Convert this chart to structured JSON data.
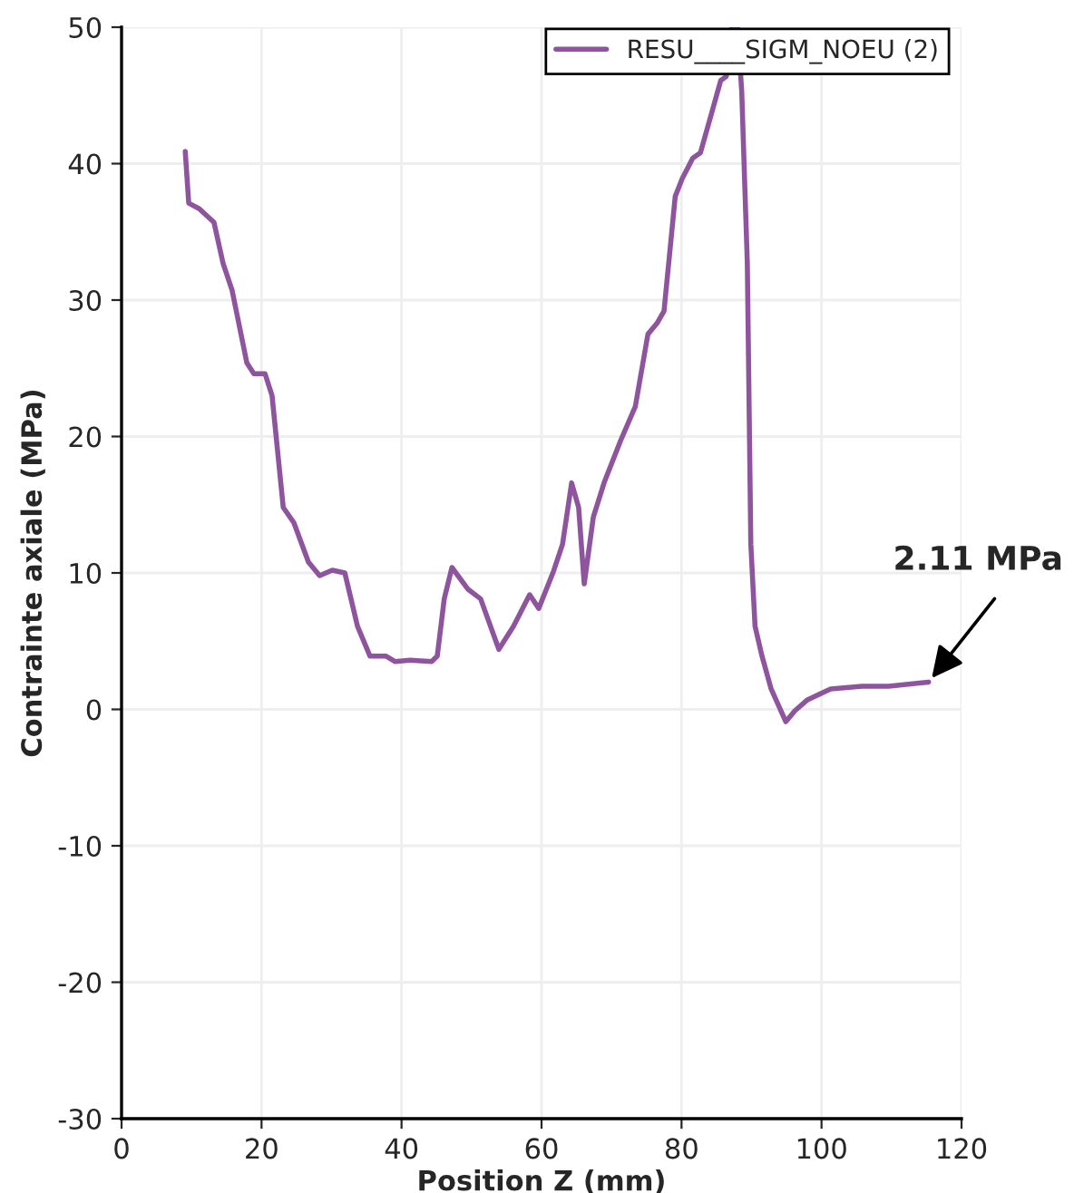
{
  "chart_data": {
    "type": "line",
    "xlabel": "Position Z (mm)",
    "ylabel": "Contrainte axiale (MPa)",
    "x": [
      9.1,
      9.6,
      11.1,
      13.2,
      14.5,
      15.8,
      17.9,
      18.9,
      20.5,
      21.5,
      23.1,
      24.6,
      26.7,
      28.3,
      30.1,
      31.9,
      33.7,
      35.5,
      37.8,
      39.1,
      41.2,
      44.3,
      45.1,
      46.1,
      47.2,
      49.5,
      51.3,
      53.9,
      56,
      58.3,
      59.6,
      61.7,
      63,
      64.3,
      65.3,
      66.1,
      67.4,
      69,
      71.3,
      73.4,
      75.2,
      76.5,
      77.5,
      79.1,
      80.1,
      81.6,
      82.7,
      84.3,
      85.6,
      86.4,
      87.2,
      88.0,
      88.6,
      89.4,
      89.9,
      90.5,
      91.5,
      92.8,
      94.9,
      96.2,
      98,
      101.3,
      105.8,
      109.6,
      115.3
    ],
    "series": [
      {
        "name": "RESU____SIGM_NOEU (2)",
        "color": "#8e559e",
        "values": [
          40.9,
          37.1,
          36.7,
          35.7,
          32.7,
          30.7,
          25.4,
          24.6,
          24.6,
          23,
          14.8,
          13.7,
          10.8,
          9.8,
          10.2,
          10,
          6.1,
          3.9,
          3.9,
          3.5,
          3.6,
          3.5,
          3.9,
          8.1,
          10.4,
          8.8,
          8.1,
          4.4,
          6.1,
          8.4,
          7.4,
          10.1,
          12.1,
          16.6,
          14.8,
          9.2,
          14.1,
          16.7,
          19.7,
          22.2,
          27.5,
          28.3,
          29.2,
          37.6,
          38.9,
          40.4,
          40.8,
          43.7,
          46.1,
          46.4,
          50,
          50,
          45.3,
          32.7,
          12.1,
          6.1,
          3.9,
          1.5,
          -0.9,
          -0.1,
          0.7,
          1.5,
          1.7,
          1.7,
          2.0
        ]
      }
    ],
    "xlim": [
      0,
      120
    ],
    "xticks": [
      0,
      20,
      40,
      60,
      80,
      100,
      120
    ],
    "ylim": [
      -30,
      50
    ],
    "yticks": [
      -30,
      -20,
      -10,
      0,
      10,
      20,
      30,
      40,
      50
    ],
    "grid": true,
    "legend": "top right",
    "marker": "none",
    "line_style": "solid",
    "annotations": [
      {
        "text": "2.11 MPa",
        "x": 115.3,
        "y": 2.0
      }
    ]
  }
}
